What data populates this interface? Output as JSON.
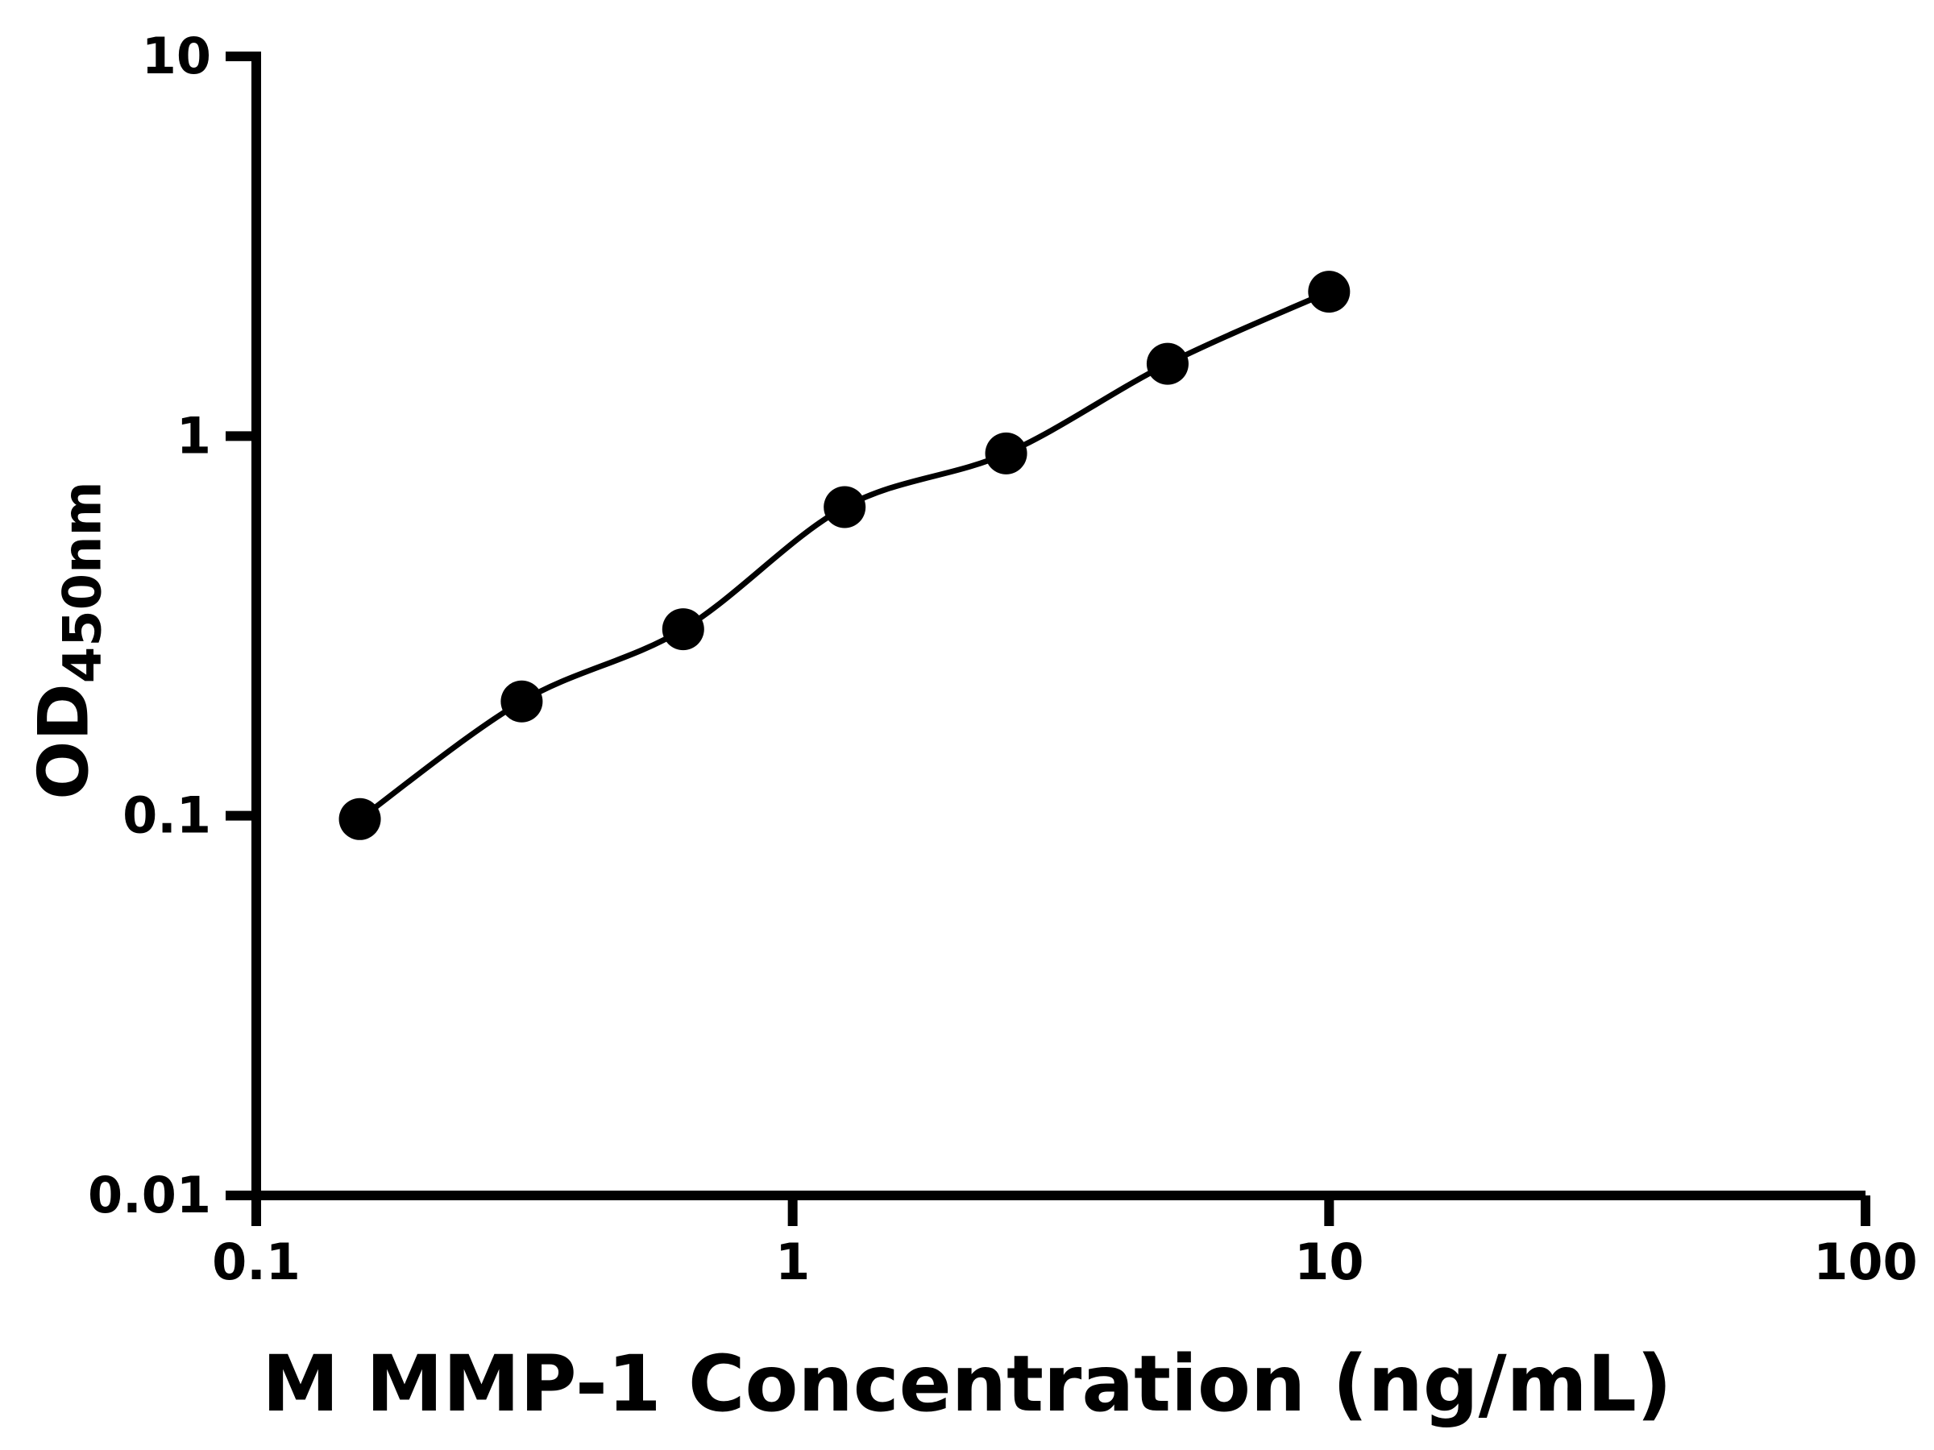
{
  "chart_data": {
    "type": "scatter",
    "title": "",
    "xlabel": "M MMP-1 Concentration (ng/mL)",
    "ylabel": "OD450nm",
    "x_scale": "log",
    "y_scale": "log",
    "xlim": [
      0.1,
      100
    ],
    "ylim": [
      0.01,
      10
    ],
    "x_ticks": [
      0.1,
      1,
      10,
      100
    ],
    "x_tick_labels": [
      "0.1",
      "1",
      "10",
      "100"
    ],
    "y_ticks": [
      0.01,
      0.1,
      1,
      10
    ],
    "y_tick_labels": [
      "0.01",
      "0.1",
      "1",
      "10"
    ],
    "grid": false,
    "legend": "none",
    "series": [
      {
        "x": [
          0.156,
          0.3125,
          0.625,
          1.25,
          2.5,
          5,
          10
        ],
        "y": [
          0.098,
          0.2,
          0.31,
          0.65,
          0.9,
          1.55,
          2.4
        ],
        "marker": "circle",
        "marker_color": "#000000",
        "line_color": "#000000",
        "line_style": "smooth"
      }
    ]
  },
  "axis_display": {
    "y_label_main": "OD",
    "y_label_sub": "450nm"
  },
  "colors": {
    "axis": "#000000",
    "background": "#ffffff"
  }
}
